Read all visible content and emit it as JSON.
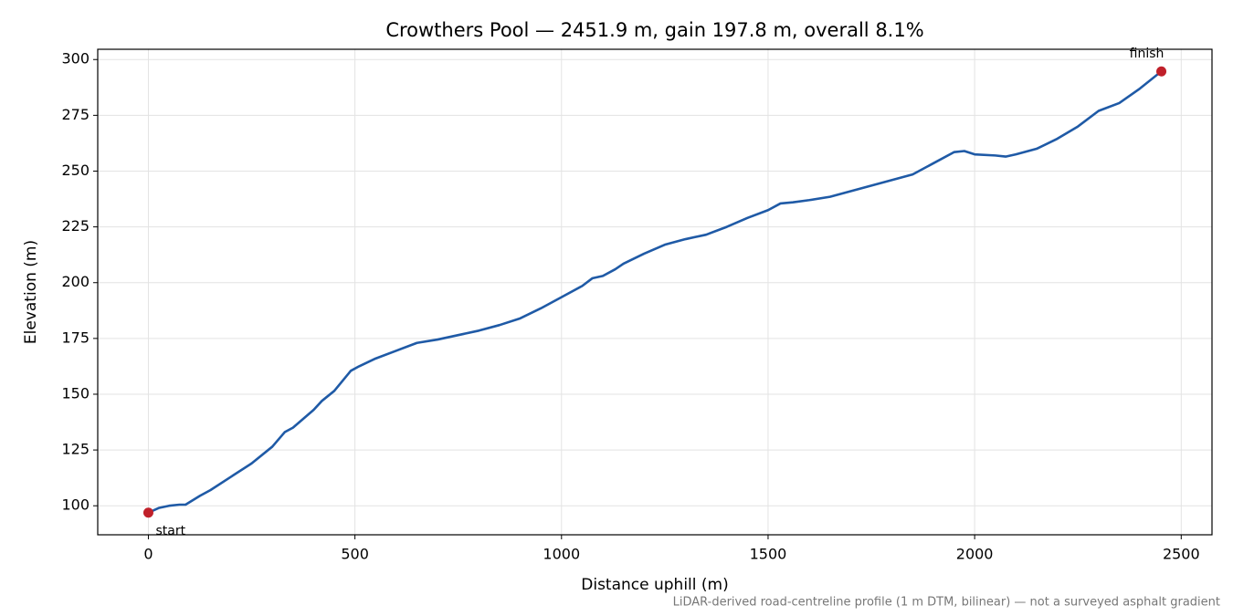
{
  "chart_data": {
    "type": "line",
    "title": "Crowthers Pool — 2451.9 m, gain 197.8 m, overall 8.1%",
    "xlabel": "Distance uphill (m)",
    "ylabel": "Elevation (m)",
    "footnote": "LiDAR-derived road-centreline profile (1 m DTM, bilinear) — not a surveyed asphalt gradient",
    "x": [
      0,
      25,
      50,
      75,
      90,
      125,
      150,
      200,
      250,
      300,
      330,
      350,
      400,
      420,
      450,
      470,
      490,
      510,
      550,
      600,
      650,
      700,
      750,
      800,
      850,
      900,
      950,
      1000,
      1050,
      1075,
      1100,
      1130,
      1150,
      1200,
      1250,
      1300,
      1350,
      1400,
      1450,
      1500,
      1530,
      1560,
      1600,
      1650,
      1700,
      1750,
      1800,
      1850,
      1900,
      1950,
      1975,
      2000,
      2050,
      2075,
      2100,
      2150,
      2200,
      2250,
      2300,
      2350,
      2400,
      2451.9
    ],
    "series": [
      {
        "name": "Elevation",
        "color": "#1f5aa6",
        "values": [
          96.9,
          99,
          100,
          100.5,
          100.5,
          104.5,
          107,
          113,
          119,
          126.5,
          133,
          135,
          143,
          147,
          151.5,
          156,
          160.5,
          162.5,
          166,
          169.5,
          173,
          174.5,
          176.5,
          178.5,
          181,
          184,
          188.5,
          193.5,
          198.5,
          202,
          203,
          206,
          208.5,
          213,
          217,
          219.5,
          221.5,
          225,
          229,
          232.5,
          235.5,
          236,
          237,
          238.5,
          241,
          243.5,
          246,
          248.5,
          253.5,
          258.5,
          259,
          257.5,
          257,
          256.5,
          257.5,
          260,
          264.5,
          270,
          277,
          280.5,
          287,
          294.7
        ]
      }
    ],
    "points": [
      {
        "label": "start",
        "x": 0,
        "y": 96.9,
        "color": "#c0202a"
      },
      {
        "label": "finish",
        "x": 2451.9,
        "y": 294.7,
        "color": "#c0202a"
      }
    ],
    "xlim": [
      -122.6,
      2574.5
    ],
    "ylim": [
      87.0,
      304.6
    ],
    "xticks": [
      0,
      500,
      1000,
      1500,
      2000,
      2500
    ],
    "yticks": [
      100,
      125,
      150,
      175,
      200,
      225,
      250,
      275,
      300
    ],
    "grid": true
  }
}
